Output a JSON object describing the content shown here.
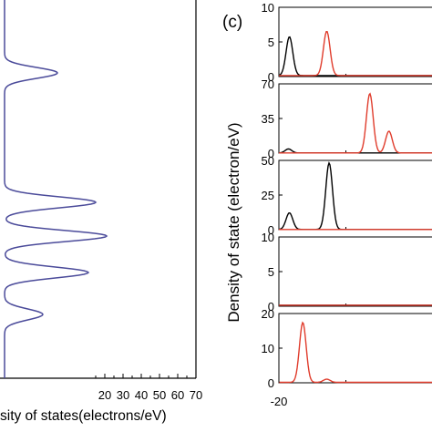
{
  "chart_data": [
    {
      "type": "line",
      "orientation": "horizontal",
      "xlabel": "sity of states(electrons/eV)",
      "xlim": [
        0,
        70
      ],
      "xticks": [
        20,
        30,
        40,
        50,
        60,
        70
      ],
      "series": [
        {
          "color": "#4b4b9a",
          "peaks": [
            {
              "x": 29,
              "y": 80
            },
            {
              "x": 50,
              "y": 222
            },
            {
              "x": 56,
              "y": 259
            },
            {
              "x": 46,
              "y": 299
            },
            {
              "x": 21,
              "y": 345
            }
          ]
        }
      ]
    },
    {
      "type": "line",
      "panel_label": "(c)",
      "ylabel": "Density of state (electron/eV)",
      "panels": [
        {
          "yticks": [
            "10",
            "5",
            "0"
          ],
          "ymax": 10,
          "series": [
            {
              "color": "#000000",
              "peaks": [
                {
                  "x": -19.8,
                  "y": 5.6
                }
              ]
            },
            {
              "color": "#e03c2c",
              "peaks": [
                {
                  "x": -12,
                  "y": 6.4
                }
              ]
            }
          ]
        },
        {
          "yticks": [
            "70",
            "35",
            "0"
          ],
          "ymax": 70,
          "series": [
            {
              "color": "#000000",
              "peaks": [
                {
                  "x": -20,
                  "y": 4
                }
              ]
            },
            {
              "color": "#e03c2c",
              "peaks": [
                {
                  "x": -3,
                  "y": 60
                },
                {
                  "x": 1,
                  "y": 22
                }
              ]
            }
          ]
        },
        {
          "yticks": [
            "50",
            "25",
            "0"
          ],
          "ymax": 50,
          "series": [
            {
              "color": "#000000",
              "peaks": [
                {
                  "x": -19.8,
                  "y": 12
                },
                {
                  "x": -11.5,
                  "y": 48
                }
              ]
            },
            {
              "color": "#e03c2c",
              "peaks": []
            }
          ]
        },
        {
          "yticks": [
            "10",
            "5",
            "0"
          ],
          "ymax": 10,
          "series": [
            {
              "color": "#000000",
              "peaks": []
            },
            {
              "color": "#e03c2c",
              "peaks": []
            }
          ]
        },
        {
          "yticks": [
            "20",
            "10",
            "0"
          ],
          "ymax": 22,
          "series": [
            {
              "color": "#e03c2c",
              "peaks": [
                {
                  "x": -17,
                  "y": 19
                },
                {
                  "x": -12,
                  "y": 1
                }
              ]
            }
          ]
        }
      ],
      "xticks": [
        "-20"
      ]
    }
  ]
}
